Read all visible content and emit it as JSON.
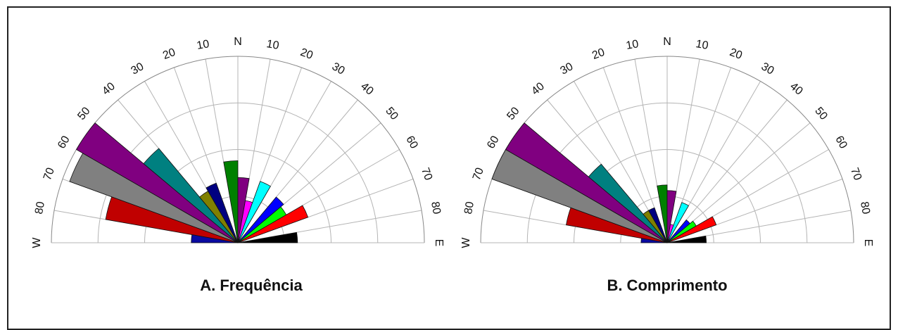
{
  "chart_data": [
    {
      "type": "rose",
      "title": "A. Frequência",
      "tick_labels": {
        "left": [
          "W",
          "80",
          "70",
          "60",
          "50",
          "40",
          "30",
          "20",
          "10"
        ],
        "north": "N",
        "right": [
          "10",
          "20",
          "30",
          "40",
          "50",
          "60",
          "70",
          "80",
          "E"
        ]
      },
      "rings": 4,
      "petals": [
        {
          "azimuth": -85,
          "value": 0.25,
          "color": "#0a0aa0"
        },
        {
          "azimuth": -75,
          "value": 0.72,
          "color": "#c00000"
        },
        {
          "azimuth": -65,
          "value": 0.96,
          "color": "#808080"
        },
        {
          "azimuth": -55,
          "value": 1.0,
          "color": "#800080"
        },
        {
          "azimuth": -45,
          "value": 0.66,
          "color": "#008080"
        },
        {
          "azimuth": -35,
          "value": 0.32,
          "color": "#808000"
        },
        {
          "azimuth": -25,
          "value": 0.34,
          "color": "#000080"
        },
        {
          "azimuth": -5,
          "value": 0.44,
          "color": "#008000"
        },
        {
          "azimuth": 5,
          "value": 0.35,
          "color": "#800080"
        },
        {
          "azimuth": 15,
          "value": 0.23,
          "color": "#ff00ff"
        },
        {
          "azimuth": 25,
          "value": 0.35,
          "color": "#00ffff"
        },
        {
          "azimuth": 45,
          "value": 0.32,
          "color": "#0000ff"
        },
        {
          "azimuth": 55,
          "value": 0.3,
          "color": "#00ff00"
        },
        {
          "azimuth": 65,
          "value": 0.4,
          "color": "#ff0000"
        },
        {
          "azimuth": 85,
          "value": 0.32,
          "color": "#000000"
        }
      ]
    },
    {
      "type": "rose",
      "title": "B. Comprimento",
      "tick_labels": {
        "left": [
          "W",
          "80",
          "70",
          "60",
          "50",
          "40",
          "30",
          "20",
          "10"
        ],
        "north": "N",
        "right": [
          "10",
          "20",
          "30",
          "40",
          "50",
          "60",
          "70",
          "80",
          "E"
        ]
      },
      "rings": 4,
      "petals": [
        {
          "azimuth": -85,
          "value": 0.14,
          "color": "#0a0aa0"
        },
        {
          "azimuth": -75,
          "value": 0.55,
          "color": "#c00000"
        },
        {
          "azimuth": -65,
          "value": 1.0,
          "color": "#808080"
        },
        {
          "azimuth": -55,
          "value": 1.0,
          "color": "#800080"
        },
        {
          "azimuth": -45,
          "value": 0.55,
          "color": "#008080"
        },
        {
          "azimuth": -35,
          "value": 0.2,
          "color": "#808000"
        },
        {
          "azimuth": -25,
          "value": 0.2,
          "color": "#000080"
        },
        {
          "azimuth": -5,
          "value": 0.31,
          "color": "#008000"
        },
        {
          "azimuth": 5,
          "value": 0.28,
          "color": "#800080"
        },
        {
          "azimuth": 15,
          "value": 0.1,
          "color": "#ff00ff"
        },
        {
          "azimuth": 25,
          "value": 0.23,
          "color": "#00ffff"
        },
        {
          "azimuth": 45,
          "value": 0.16,
          "color": "#0000ff"
        },
        {
          "azimuth": 55,
          "value": 0.18,
          "color": "#00ff00"
        },
        {
          "azimuth": 65,
          "value": 0.28,
          "color": "#ff0000"
        },
        {
          "azimuth": 85,
          "value": 0.21,
          "color": "#000000"
        }
      ]
    }
  ]
}
